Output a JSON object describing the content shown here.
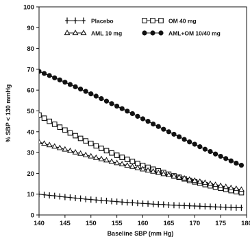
{
  "chart_data": {
    "type": "line",
    "title": "",
    "xlabel": "Baseline SBP (mm Hg)",
    "ylabel": "% SBP < 130 mmHg",
    "xlim": [
      140,
      180
    ],
    "ylim": [
      0,
      100
    ],
    "x_ticks": [
      140,
      145,
      150,
      155,
      160,
      165,
      170,
      175,
      180
    ],
    "y_ticks": [
      0,
      10,
      20,
      30,
      40,
      50,
      60,
      70,
      80,
      90,
      100
    ],
    "grid": false,
    "legend_position": "top-center",
    "x": [
      140,
      141,
      142,
      143,
      144,
      145,
      146,
      147,
      148,
      149,
      150,
      151,
      152,
      153,
      154,
      155,
      156,
      157,
      158,
      159,
      160,
      161,
      162,
      163,
      164,
      165,
      166,
      167,
      168,
      169,
      170,
      171,
      172,
      173,
      174,
      175,
      176,
      177,
      178,
      179
    ],
    "series": [
      {
        "name": "Placebo",
        "marker": "plus",
        "color": "#111111",
        "values": [
          10,
          9.7,
          9.4,
          9.2,
          8.9,
          8.6,
          8.4,
          8.1,
          7.9,
          7.6,
          7.4,
          7.2,
          7.0,
          6.8,
          6.6,
          6.4,
          6.2,
          6.0,
          5.9,
          5.7,
          5.5,
          5.4,
          5.2,
          5.1,
          5.0,
          4.8,
          4.7,
          4.6,
          4.5,
          4.4,
          4.3,
          4.2,
          4.1,
          4.0,
          3.9,
          3.8,
          3.7,
          3.6,
          3.5,
          3.5
        ]
      },
      {
        "name": "OM 40 mg",
        "marker": "square",
        "color": "#111111",
        "values": [
          48,
          46.5,
          45.0,
          43.6,
          42.2,
          40.8,
          39.4,
          38.1,
          36.8,
          35.6,
          34.4,
          33.2,
          32.0,
          30.9,
          29.8,
          28.7,
          27.7,
          26.7,
          25.7,
          24.7,
          23.8,
          22.9,
          22.0,
          21.2,
          20.4,
          19.6,
          18.8,
          18.1,
          17.3,
          16.6,
          15.9,
          15.3,
          14.6,
          14.0,
          13.4,
          12.8,
          12.3,
          11.7,
          11.2,
          10.7
        ]
      },
      {
        "name": "AML 10 mg",
        "marker": "triangle",
        "color": "#111111",
        "values": [
          35,
          34.3,
          33.6,
          32.9,
          32.2,
          31.5,
          30.8,
          30.1,
          29.5,
          28.8,
          28.2,
          27.5,
          26.9,
          26.3,
          25.6,
          25.0,
          24.4,
          23.8,
          23.2,
          22.6,
          22.0,
          21.4,
          20.9,
          20.3,
          19.7,
          19.2,
          18.6,
          18.1,
          17.6,
          17.0,
          16.5,
          16.0,
          15.5,
          15.0,
          14.5,
          14.0,
          13.5,
          13.0,
          12.6,
          12.2
        ]
      },
      {
        "name": "AML+OM 10/40 mg",
        "marker": "circle",
        "color": "#111111",
        "values": [
          69,
          68.0,
          67.0,
          65.9,
          64.9,
          63.8,
          62.7,
          61.6,
          60.5,
          59.4,
          58.2,
          57.1,
          55.9,
          54.7,
          53.5,
          52.3,
          51.1,
          49.9,
          48.7,
          47.4,
          46.2,
          45.0,
          43.7,
          42.5,
          41.2,
          40.0,
          38.8,
          37.6,
          36.3,
          35.1,
          34.0,
          32.8,
          31.6,
          30.5,
          29.3,
          28.2,
          27.1,
          26.0,
          24.9,
          23.9
        ]
      }
    ]
  }
}
